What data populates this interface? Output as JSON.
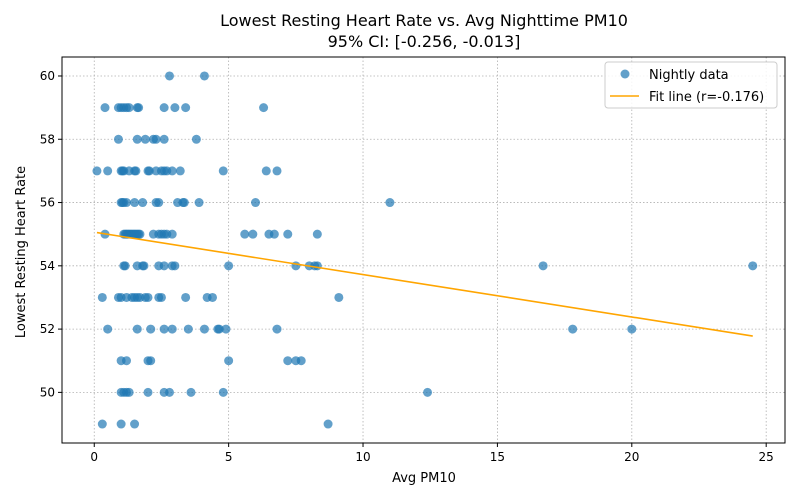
{
  "chart_data": {
    "type": "scatter",
    "title": "Lowest Resting Heart Rate vs. Avg Nighttime PM10",
    "subtitle": "95% CI: [-0.256, -0.013]",
    "xlabel": "Avg PM10",
    "ylabel": "Lowest Resting Heart Rate",
    "xlim": [
      -1.2,
      25.7
    ],
    "ylim": [
      48.4,
      60.6
    ],
    "xticks": [
      0,
      5,
      10,
      15,
      20,
      25
    ],
    "yticks": [
      50,
      52,
      54,
      56,
      58,
      60
    ],
    "grid": true,
    "legend_position": "top-right",
    "colors": {
      "points": "#1f77b4",
      "fit": "#ffa500",
      "grid": "#b0b0b0"
    },
    "series": [
      {
        "name": "Nightly data",
        "kind": "scatter",
        "points": [
          [
            2.8,
            60
          ],
          [
            4.1,
            60
          ],
          [
            0.4,
            59
          ],
          [
            0.9,
            59
          ],
          [
            1.0,
            59
          ],
          [
            1.1,
            59
          ],
          [
            1.2,
            59
          ],
          [
            1.3,
            59
          ],
          [
            1.6,
            59
          ],
          [
            1.65,
            59
          ],
          [
            2.6,
            59
          ],
          [
            3.0,
            59
          ],
          [
            3.4,
            59
          ],
          [
            6.3,
            59
          ],
          [
            0.9,
            58
          ],
          [
            1.6,
            58
          ],
          [
            1.9,
            58
          ],
          [
            2.2,
            58
          ],
          [
            2.3,
            58
          ],
          [
            2.6,
            58
          ],
          [
            3.8,
            58
          ],
          [
            0.1,
            57
          ],
          [
            0.5,
            57
          ],
          [
            1.0,
            57
          ],
          [
            1.05,
            57
          ],
          [
            1.1,
            57
          ],
          [
            1.3,
            57
          ],
          [
            1.5,
            57
          ],
          [
            1.55,
            57
          ],
          [
            2.0,
            57
          ],
          [
            2.05,
            57
          ],
          [
            2.3,
            57
          ],
          [
            2.5,
            57
          ],
          [
            2.6,
            57
          ],
          [
            2.7,
            57
          ],
          [
            2.9,
            57
          ],
          [
            3.2,
            57
          ],
          [
            4.8,
            57
          ],
          [
            6.4,
            57
          ],
          [
            6.8,
            57
          ],
          [
            1.0,
            56
          ],
          [
            1.05,
            56
          ],
          [
            1.1,
            56
          ],
          [
            1.2,
            56
          ],
          [
            1.5,
            56
          ],
          [
            1.8,
            56
          ],
          [
            2.3,
            56
          ],
          [
            2.4,
            56
          ],
          [
            3.1,
            56
          ],
          [
            3.3,
            56
          ],
          [
            3.35,
            56
          ],
          [
            3.9,
            56
          ],
          [
            6.0,
            56
          ],
          [
            11.0,
            56
          ],
          [
            0.4,
            55
          ],
          [
            1.1,
            55
          ],
          [
            1.15,
            55
          ],
          [
            1.2,
            55
          ],
          [
            1.25,
            55
          ],
          [
            1.3,
            55
          ],
          [
            1.35,
            55
          ],
          [
            1.4,
            55
          ],
          [
            1.45,
            55
          ],
          [
            1.5,
            55
          ],
          [
            1.55,
            55
          ],
          [
            1.6,
            55
          ],
          [
            1.65,
            55
          ],
          [
            1.7,
            55
          ],
          [
            2.2,
            55
          ],
          [
            2.4,
            55
          ],
          [
            2.5,
            55
          ],
          [
            2.6,
            55
          ],
          [
            2.7,
            55
          ],
          [
            2.9,
            55
          ],
          [
            5.6,
            55
          ],
          [
            5.9,
            55
          ],
          [
            6.5,
            55
          ],
          [
            6.7,
            55
          ],
          [
            7.2,
            55
          ],
          [
            8.3,
            55
          ],
          [
            1.1,
            54
          ],
          [
            1.15,
            54
          ],
          [
            1.6,
            54
          ],
          [
            1.8,
            54
          ],
          [
            1.85,
            54
          ],
          [
            2.4,
            54
          ],
          [
            2.6,
            54
          ],
          [
            2.9,
            54
          ],
          [
            3.0,
            54
          ],
          [
            5.0,
            54
          ],
          [
            7.5,
            54
          ],
          [
            8.0,
            54
          ],
          [
            8.2,
            54
          ],
          [
            8.3,
            54
          ],
          [
            16.7,
            54
          ],
          [
            24.5,
            54
          ],
          [
            0.3,
            53
          ],
          [
            0.9,
            53
          ],
          [
            1.0,
            53
          ],
          [
            1.2,
            53
          ],
          [
            1.4,
            53
          ],
          [
            1.5,
            53
          ],
          [
            1.6,
            53
          ],
          [
            1.7,
            53
          ],
          [
            1.9,
            53
          ],
          [
            2.0,
            53
          ],
          [
            2.4,
            53
          ],
          [
            2.5,
            53
          ],
          [
            3.4,
            53
          ],
          [
            4.2,
            53
          ],
          [
            4.4,
            53
          ],
          [
            9.1,
            53
          ],
          [
            0.5,
            52
          ],
          [
            1.6,
            52
          ],
          [
            2.1,
            52
          ],
          [
            2.6,
            52
          ],
          [
            2.9,
            52
          ],
          [
            3.5,
            52
          ],
          [
            4.1,
            52
          ],
          [
            4.6,
            52
          ],
          [
            4.65,
            52
          ],
          [
            4.9,
            52
          ],
          [
            6.8,
            52
          ],
          [
            17.8,
            52
          ],
          [
            20.0,
            52
          ],
          [
            1.0,
            51
          ],
          [
            1.2,
            51
          ],
          [
            2.0,
            51
          ],
          [
            2.1,
            51
          ],
          [
            5.0,
            51
          ],
          [
            7.2,
            51
          ],
          [
            7.5,
            51
          ],
          [
            7.7,
            51
          ],
          [
            1.0,
            50
          ],
          [
            1.1,
            50
          ],
          [
            1.2,
            50
          ],
          [
            1.3,
            50
          ],
          [
            2.0,
            50
          ],
          [
            2.6,
            50
          ],
          [
            2.8,
            50
          ],
          [
            3.6,
            50
          ],
          [
            4.8,
            50
          ],
          [
            12.4,
            50
          ],
          [
            0.3,
            49
          ],
          [
            1.0,
            49
          ],
          [
            1.5,
            49
          ],
          [
            8.7,
            49
          ]
        ]
      },
      {
        "name": "Fit line (r=-0.176)",
        "kind": "line",
        "points": [
          [
            0.1,
            55.05
          ],
          [
            24.5,
            51.78
          ]
        ]
      }
    ]
  }
}
